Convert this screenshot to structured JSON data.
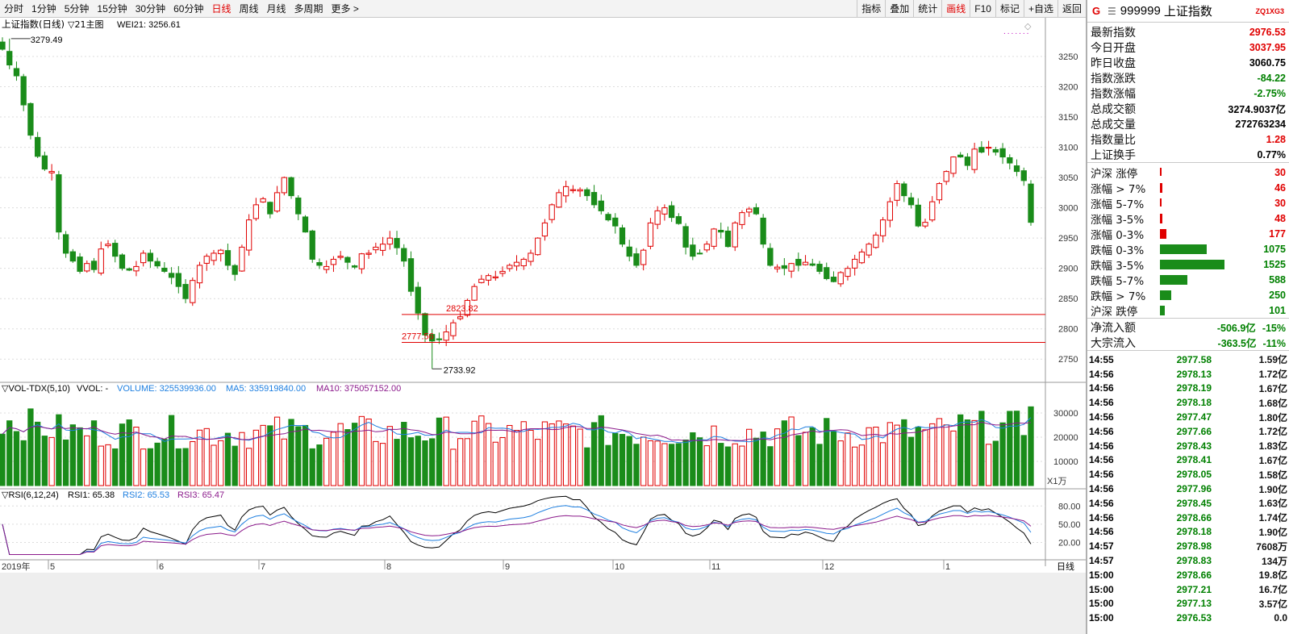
{
  "toolbar": {
    "periods": [
      "分时",
      "1分钟",
      "5分钟",
      "15分钟",
      "30分钟",
      "60分钟",
      "日线",
      "周线",
      "月线",
      "多周期",
      "更多 >"
    ],
    "active_period": "日线",
    "tools": [
      "指标",
      "叠加",
      "统计",
      "画线",
      "F10",
      "标记",
      "+自选",
      "返回"
    ],
    "active_tool": "画线"
  },
  "chart_header": {
    "title": "上证指数(日线)",
    "main_label": "▽21主图",
    "wei": "WEI21: 3256.61",
    "high_label": "3279.49",
    "low_label": "2733.92",
    "line1_label": "2823.82",
    "line2_label": "2777.56"
  },
  "price_axis": {
    "ticks": [
      "3250",
      "3200",
      "3150",
      "3100",
      "3050",
      "3000",
      "2950",
      "2900",
      "2850",
      "2800",
      "2750"
    ]
  },
  "volume_panel": {
    "label": "▽VOL-TDX(5,10)",
    "vvol": "VVOL: -",
    "volume": "VOLUME: 325539936.00",
    "ma5": "MA5: 335919840.00",
    "ma10": "MA10: 375057152.00",
    "ticks": [
      "30000",
      "20000",
      "10000"
    ],
    "unit": "X1万"
  },
  "rsi_panel": {
    "label": "▽RSI(6,12,24)",
    "rsi1": "RSI1: 65.38",
    "rsi2": "RSI2: 65.53",
    "rsi3": "RSI3: 65.47",
    "ticks": [
      "80.00",
      "50.00",
      "20.00"
    ]
  },
  "date_axis": {
    "labels": [
      "2019年",
      "5",
      "6",
      "7",
      "8",
      "9",
      "10",
      "11",
      "12",
      "1"
    ],
    "right_label": "日线"
  },
  "colors": {
    "up": "#e00000",
    "down": "#1a8c1a",
    "ma5": "#1e7fe0",
    "ma10": "#8b1a8b",
    "rsi1": "#000000",
    "rsi2": "#1e7fe0",
    "rsi3": "#8b1a8b"
  },
  "sidebar": {
    "logo": "G",
    "code": "999999",
    "name": "上证指数",
    "tag": "ZQ1XG3",
    "fields": [
      {
        "label": "最新指数",
        "value": "2976.53",
        "color": "up"
      },
      {
        "label": "今日开盘",
        "value": "3037.95",
        "color": "up"
      },
      {
        "label": "昨日收盘",
        "value": "3060.75",
        "color": "blk"
      },
      {
        "label": "指数涨跌",
        "value": "-84.22",
        "color": "dn"
      },
      {
        "label": "指数涨幅",
        "value": "-2.75%",
        "color": "dn"
      },
      {
        "label": "总成交额",
        "value": "3274.9037亿",
        "color": "blk"
      },
      {
        "label": "总成交量",
        "value": "272763234",
        "color": "blk"
      },
      {
        "label": "指数量比",
        "value": "1.28",
        "color": "up"
      },
      {
        "label": "上证换手",
        "value": "0.77%",
        "color": "blk"
      }
    ],
    "breadth": [
      {
        "label": "沪深 涨停",
        "value": "30",
        "frac": 0.015,
        "color": "up"
      },
      {
        "label": "涨幅 > 7%",
        "value": "46",
        "frac": 0.02,
        "color": "up"
      },
      {
        "label": "涨幅 5-7%",
        "value": "30",
        "frac": 0.015,
        "color": "up"
      },
      {
        "label": "涨幅 3-5%",
        "value": "48",
        "frac": 0.03,
        "color": "up"
      },
      {
        "label": "涨幅 0-3%",
        "value": "177",
        "frac": 0.1,
        "color": "up"
      },
      {
        "label": "跌幅 0-3%",
        "value": "1075",
        "frac": 0.72,
        "color": "dn"
      },
      {
        "label": "跌幅 3-5%",
        "value": "1525",
        "frac": 1.0,
        "color": "dn"
      },
      {
        "label": "跌幅 5-7%",
        "value": "588",
        "frac": 0.42,
        "color": "dn"
      },
      {
        "label": "跌幅 > 7%",
        "value": "250",
        "frac": 0.17,
        "color": "dn"
      },
      {
        "label": "沪深 跌停",
        "value": "101",
        "frac": 0.07,
        "color": "dn"
      }
    ],
    "flows": [
      {
        "label": "净流入额",
        "value": "-506.9亿",
        "pct": "-15%"
      },
      {
        "label": "大宗流入",
        "value": "-363.5亿",
        "pct": "-11%"
      }
    ],
    "ticks": [
      {
        "time": "14:55",
        "price": "2977.58",
        "vol": "1.59亿"
      },
      {
        "time": "14:56",
        "price": "2978.13",
        "vol": "1.72亿"
      },
      {
        "time": "14:56",
        "price": "2978.19",
        "vol": "1.67亿"
      },
      {
        "time": "14:56",
        "price": "2978.18",
        "vol": "1.68亿"
      },
      {
        "time": "14:56",
        "price": "2977.47",
        "vol": "1.80亿"
      },
      {
        "time": "14:56",
        "price": "2977.66",
        "vol": "1.72亿"
      },
      {
        "time": "14:56",
        "price": "2978.43",
        "vol": "1.83亿"
      },
      {
        "time": "14:56",
        "price": "2978.41",
        "vol": "1.67亿"
      },
      {
        "time": "14:56",
        "price": "2978.05",
        "vol": "1.58亿"
      },
      {
        "time": "14:56",
        "price": "2977.96",
        "vol": "1.90亿"
      },
      {
        "time": "14:56",
        "price": "2978.45",
        "vol": "1.63亿"
      },
      {
        "time": "14:56",
        "price": "2978.66",
        "vol": "1.74亿"
      },
      {
        "time": "14:56",
        "price": "2978.18",
        "vol": "1.90亿"
      },
      {
        "time": "14:57",
        "price": "2978.98",
        "vol": "7608万"
      },
      {
        "time": "14:57",
        "price": "2978.83",
        "vol": "134万"
      },
      {
        "time": "15:00",
        "price": "2978.66",
        "vol": "19.8亿"
      },
      {
        "time": "15:00",
        "price": "2977.21",
        "vol": "16.7亿"
      },
      {
        "time": "15:00",
        "price": "2977.13",
        "vol": "3.57亿"
      },
      {
        "time": "15:00",
        "price": "2976.53",
        "vol": "0.0"
      }
    ]
  },
  "chart_data": {
    "type": "candlestick",
    "title": "上证指数(日线)",
    "ylim": [
      2725,
      3290
    ],
    "hlines": [
      2823.82,
      2777.56
    ],
    "high": 3279.49,
    "low": 2733.92,
    "close_series": [
      3262,
      3236,
      3218,
      3170,
      3120,
      3085,
      3064,
      3060,
      2960,
      2925,
      2912,
      2895,
      2908,
      2898,
      2932,
      2940,
      2920,
      2900,
      2897,
      2903,
      2925,
      2912,
      2904,
      2895,
      2885,
      2870,
      2850,
      2880,
      2905,
      2920,
      2925,
      2930,
      2905,
      2890,
      2935,
      2980,
      3005,
      3015,
      2990,
      3025,
      3050,
      3020,
      2990,
      2960,
      2915,
      2905,
      2903,
      2915,
      2920,
      2910,
      2902,
      2924,
      2925,
      2935,
      2940,
      2950,
      2934,
      2912,
      2862,
      2826,
      2790,
      2780,
      2782,
      2795,
      2810,
      2820,
      2847,
      2870,
      2882,
      2888,
      2886,
      2895,
      2905,
      2910,
      2915,
      2925,
      2950,
      2975,
      3005,
      3025,
      3035,
      3030,
      3030,
      3020,
      3005,
      2995,
      2980,
      2970,
      2940,
      2920,
      2905,
      2930,
      2975,
      2995,
      3000,
      2984,
      2974,
      2935,
      2920,
      2925,
      2940,
      2965,
      2960,
      2936,
      2975,
      2992,
      2998,
      2990,
      2940,
      2905,
      2902,
      2900,
      2908,
      2905,
      2910,
      2905,
      2895,
      2883,
      2878,
      2893,
      2900,
      2915,
      2927,
      2940,
      2955,
      2980,
      3010,
      3040,
      3020,
      3005,
      2970,
      2976,
      3010,
      3040,
      3060,
      3084,
      3084,
      3070,
      3097,
      3092,
      3100,
      3092,
      3084,
      3074,
      3060,
      3045,
      2976
    ],
    "volume_unit": "万",
    "volume_ylim": [
      0,
      36000
    ],
    "rsi_ylim": [
      10,
      95
    ]
  }
}
